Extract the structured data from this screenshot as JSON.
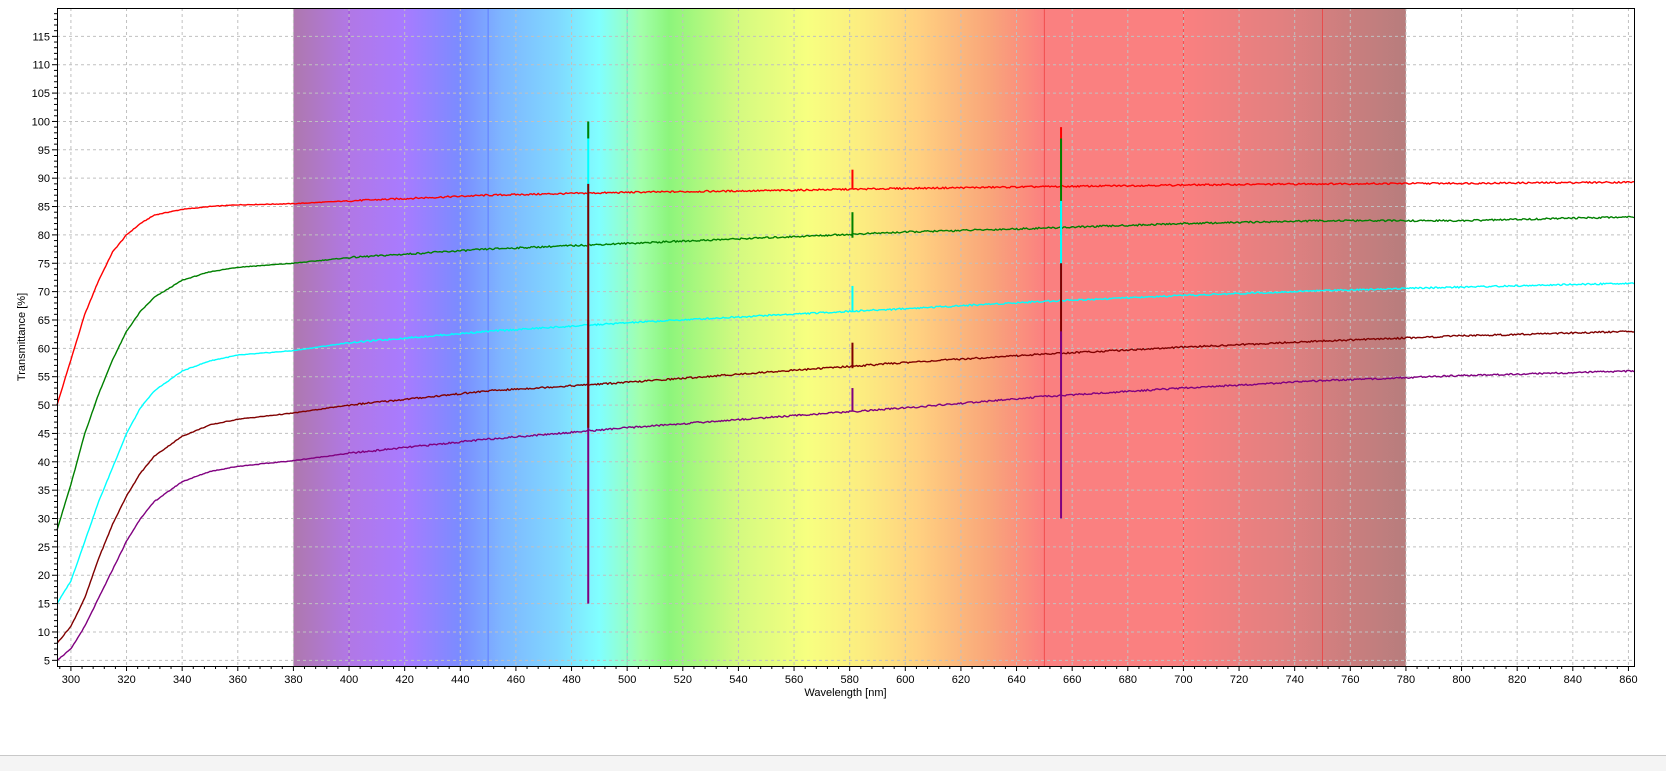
{
  "chart_data": {
    "type": "line",
    "title": "",
    "xlabel": "Wavelength [nm]",
    "ylabel": "Transmittance [%]",
    "xlim": [
      295,
      862
    ],
    "ylim": [
      4,
      120
    ],
    "x_ticks": [
      300,
      320,
      340,
      360,
      380,
      400,
      420,
      440,
      460,
      480,
      500,
      520,
      540,
      560,
      580,
      600,
      620,
      640,
      660,
      680,
      700,
      720,
      740,
      760,
      780,
      800,
      820,
      840,
      860
    ],
    "y_ticks": [
      5,
      10,
      15,
      20,
      25,
      30,
      35,
      40,
      45,
      50,
      55,
      60,
      65,
      70,
      75,
      80,
      85,
      90,
      95,
      100,
      105,
      110,
      115
    ],
    "grid": true,
    "legend": "none",
    "visible_spectrum_band": [
      380,
      780
    ],
    "band_marker_lines": [
      400,
      450,
      500,
      650,
      700,
      750
    ],
    "spike_wavelengths": [
      486,
      581,
      656
    ],
    "series": [
      {
        "color": "#ff0000",
        "x": [
          295,
          300,
          305,
          310,
          315,
          320,
          325,
          330,
          340,
          350,
          360,
          380,
          400,
          450,
          500,
          550,
          600,
          650,
          700,
          750,
          800,
          862
        ],
        "values": [
          50,
          58,
          66,
          72,
          77,
          80,
          82,
          83.5,
          84.5,
          85,
          85.3,
          85.5,
          86,
          87,
          87.5,
          87.8,
          88.2,
          88.5,
          88.8,
          89,
          89.1,
          89.3
        ]
      },
      {
        "color": "#008000",
        "x": [
          295,
          300,
          305,
          310,
          315,
          320,
          325,
          330,
          340,
          350,
          360,
          380,
          400,
          450,
          500,
          550,
          600,
          650,
          700,
          750,
          800,
          862
        ],
        "values": [
          28,
          36,
          45,
          52,
          58,
          63,
          66.5,
          69,
          72,
          73.5,
          74.3,
          75,
          76,
          77.5,
          78.5,
          79.5,
          80.5,
          81.2,
          82,
          82.5,
          82.5,
          83.2
        ]
      },
      {
        "color": "#00ffff",
        "x": [
          295,
          300,
          305,
          310,
          315,
          320,
          325,
          330,
          340,
          350,
          360,
          380,
          400,
          450,
          500,
          550,
          600,
          650,
          700,
          750,
          800,
          862
        ],
        "values": [
          15,
          19,
          26,
          33,
          39,
          45,
          49.5,
          52.5,
          56,
          57.8,
          58.8,
          59.6,
          61,
          63,
          64.5,
          65.8,
          67,
          68.3,
          69.3,
          70.2,
          70.8,
          71.5
        ]
      },
      {
        "color": "#800000",
        "x": [
          295,
          300,
          305,
          310,
          315,
          320,
          325,
          330,
          340,
          350,
          360,
          380,
          400,
          450,
          500,
          550,
          600,
          650,
          700,
          750,
          800,
          862
        ],
        "values": [
          8,
          11,
          16,
          23,
          29,
          34,
          38,
          41,
          44.5,
          46.5,
          47.5,
          48.6,
          50,
          52.5,
          54,
          55.8,
          57.5,
          59,
          60.2,
          61.3,
          62.2,
          63
        ]
      },
      {
        "color": "#800080",
        "x": [
          295,
          300,
          305,
          310,
          315,
          320,
          325,
          330,
          340,
          350,
          360,
          380,
          400,
          450,
          500,
          550,
          600,
          650,
          700,
          750,
          800,
          862
        ],
        "values": [
          5,
          7,
          11,
          16,
          21,
          26,
          30,
          33,
          36.5,
          38.3,
          39.2,
          40.2,
          41.5,
          44,
          46,
          47.8,
          49.5,
          51.5,
          53,
          54.3,
          55.2,
          56
        ]
      }
    ],
    "spikes": [
      {
        "x": 486,
        "top": 100,
        "bottom": 65,
        "color": "#00ffff"
      },
      {
        "x": 486,
        "top": 100,
        "bottom": 97,
        "color": "#008000"
      },
      {
        "x": 486,
        "top": 89,
        "bottom": 65,
        "color": "#800000"
      },
      {
        "x": 486,
        "top": 65,
        "bottom": 15,
        "color": "#800080"
      },
      {
        "x": 486,
        "top": 65,
        "bottom": 46,
        "color": "#800000"
      },
      {
        "x": 581,
        "top": 91.5,
        "bottom": 88,
        "color": "#ff0000"
      },
      {
        "x": 581,
        "top": 84,
        "bottom": 79.5,
        "color": "#008000"
      },
      {
        "x": 581,
        "top": 71,
        "bottom": 66.5,
        "color": "#00ffff"
      },
      {
        "x": 581,
        "top": 61,
        "bottom": 56.5,
        "color": "#800000"
      },
      {
        "x": 581,
        "top": 53,
        "bottom": 49,
        "color": "#800080"
      },
      {
        "x": 656,
        "top": 99,
        "bottom": 88,
        "color": "#ff0000"
      },
      {
        "x": 656,
        "top": 97,
        "bottom": 80,
        "color": "#008000"
      },
      {
        "x": 656,
        "top": 86,
        "bottom": 67,
        "color": "#00ffff"
      },
      {
        "x": 656,
        "top": 75,
        "bottom": 59,
        "color": "#800000"
      },
      {
        "x": 656,
        "top": 63,
        "bottom": 30,
        "color": "#800080"
      }
    ],
    "colors": {
      "grid": "#c0c0c0",
      "spectrum": [
        {
          "nm": 380,
          "color": "#ae78ae"
        },
        {
          "nm": 400,
          "color": "#b178e6"
        },
        {
          "nm": 420,
          "color": "#a87bff"
        },
        {
          "nm": 440,
          "color": "#7a8cff"
        },
        {
          "nm": 455,
          "color": "#7eb6ff"
        },
        {
          "nm": 475,
          "color": "#80d8ff"
        },
        {
          "nm": 490,
          "color": "#80ffff"
        },
        {
          "nm": 505,
          "color": "#a2ffaa"
        },
        {
          "nm": 515,
          "color": "#8cf57c"
        },
        {
          "nm": 540,
          "color": "#d4fa80"
        },
        {
          "nm": 565,
          "color": "#f7ff80"
        },
        {
          "nm": 585,
          "color": "#fcec80"
        },
        {
          "nm": 605,
          "color": "#ffd080"
        },
        {
          "nm": 630,
          "color": "#f9a67a"
        },
        {
          "nm": 650,
          "color": "#fa8080"
        },
        {
          "nm": 700,
          "color": "#fa8080"
        },
        {
          "nm": 735,
          "color": "#e28080"
        },
        {
          "nm": 780,
          "color": "#b77d7d"
        }
      ]
    }
  }
}
